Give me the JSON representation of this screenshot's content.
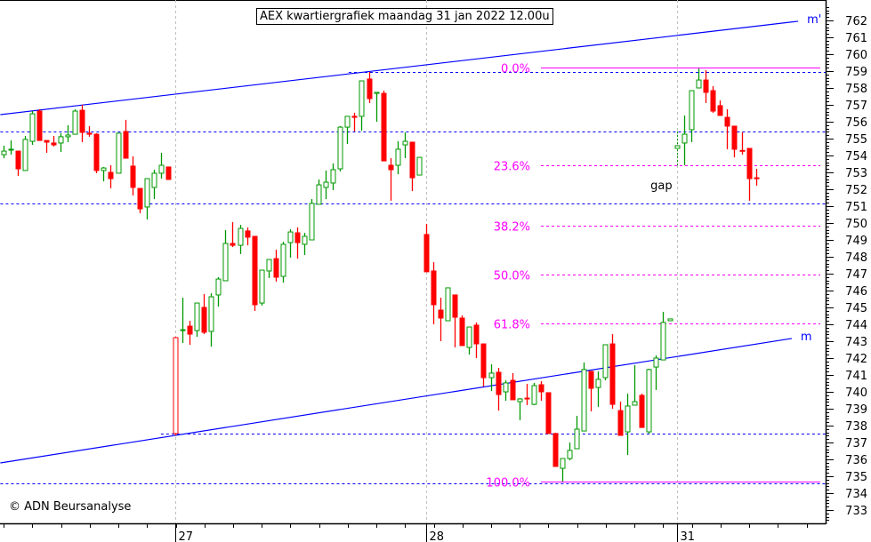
{
  "title": "AEX kwartiergrafiek maandag 31 jan 2022 12.00u",
  "copyright": "© ADN Beursanalyse",
  "colors": {
    "up": "#009900",
    "down": "#ff0000",
    "trend": "#0000ff",
    "fib": "#ff00ff",
    "grid": "#c0c0c0",
    "axis": "#000000"
  },
  "chart_data": {
    "type": "candlestick",
    "title": "AEX kwartiergrafiek maandag 31 jan 2022 12.00u",
    "ylabel": "",
    "ylim": [
      732.3,
      763.2
    ],
    "y_ticks": [
      733,
      734,
      735,
      736,
      737,
      738,
      739,
      740,
      741,
      742,
      743,
      744,
      745,
      746,
      747,
      748,
      749,
      750,
      751,
      752,
      753,
      754,
      755,
      756,
      757,
      758,
      759,
      760,
      761,
      762
    ],
    "bars_per_day": 35,
    "x_tick_every": 4,
    "x_range": [
      -24.4,
      90.7
    ],
    "day_labels": [
      {
        "t": 0,
        "label": "27"
      },
      {
        "t": 35,
        "label": "28"
      },
      {
        "t": 70,
        "label": "31"
      }
    ],
    "candle_fields": [
      "t",
      "open",
      "high",
      "low",
      "close"
    ],
    "candles": [
      [
        -24,
        754.05,
        754.58,
        753.84,
        754.26
      ],
      [
        -23,
        754.32,
        754.89,
        754.05,
        754.37
      ],
      [
        -22,
        754.26,
        754.26,
        752.79,
        753.21
      ],
      [
        -21,
        753.11,
        755.16,
        753.11,
        754.95
      ],
      [
        -20,
        754.84,
        756.63,
        754.63,
        756.47
      ],
      [
        -19,
        756.63,
        756.74,
        754.89,
        754.89
      ],
      [
        -18,
        754.89,
        754.89,
        754.16,
        754.79
      ],
      [
        -17,
        754.74,
        755.16,
        754.53,
        754.63
      ],
      [
        -16,
        754.74,
        755.32,
        754.21,
        755.11
      ],
      [
        -15,
        755.11,
        755.79,
        754.79,
        755.21
      ],
      [
        -14,
        755.26,
        756.74,
        755.26,
        756.63
      ],
      [
        -13,
        756.68,
        757.0,
        754.79,
        755.37
      ],
      [
        -12,
        755.32,
        755.74,
        755.11,
        755.26
      ],
      [
        -11,
        755.26,
        755.32,
        752.95,
        753.11
      ],
      [
        -10,
        753.11,
        753.32,
        752.47,
        753.26
      ],
      [
        -9,
        753.0,
        753.42,
        752.05,
        752.63
      ],
      [
        -8,
        752.95,
        755.32,
        752.95,
        755.32
      ],
      [
        -7,
        755.42,
        756.11,
        753.84,
        753.84
      ],
      [
        -6,
        753.37,
        753.95,
        751.63,
        752.11
      ],
      [
        -5,
        752.05,
        752.05,
        750.58,
        750.84
      ],
      [
        -4,
        750.95,
        752.63,
        750.21,
        752.63
      ],
      [
        -3,
        752.11,
        753.16,
        751.42,
        752.95
      ],
      [
        -2,
        752.95,
        754.16,
        752.63,
        753.42
      ],
      [
        -1,
        753.32,
        753.32,
        752.58,
        752.58
      ],
      [
        0,
        743.21,
        743.26,
        737.42,
        737.53
      ],
      [
        1,
        743.63,
        745.58,
        742.89,
        743.68
      ],
      [
        2,
        743.89,
        744.21,
        742.79,
        743.42
      ],
      [
        3,
        743.63,
        745.26,
        743.26,
        745.26
      ],
      [
        4,
        745.0,
        745.79,
        743.42,
        743.53
      ],
      [
        5,
        743.58,
        745.84,
        742.68,
        745.63
      ],
      [
        6,
        745.74,
        746.79,
        745.05,
        746.68
      ],
      [
        7,
        746.58,
        749.58,
        746.58,
        748.79
      ],
      [
        8,
        748.79,
        750.05,
        748.58,
        748.68
      ],
      [
        9,
        748.68,
        749.89,
        748.16,
        749.68
      ],
      [
        10,
        749.53,
        749.74,
        748.68,
        749.16
      ],
      [
        11,
        749.21,
        749.21,
        744.79,
        745.16
      ],
      [
        12,
        745.26,
        747.21,
        745.11,
        747.21
      ],
      [
        13,
        747.16,
        747.84,
        746.74,
        747.84
      ],
      [
        14,
        747.89,
        748.42,
        746.53,
        746.79
      ],
      [
        15,
        746.84,
        748.89,
        746.47,
        748.74
      ],
      [
        16,
        748.84,
        749.63,
        747.95,
        749.47
      ],
      [
        17,
        749.42,
        749.74,
        747.89,
        748.84
      ],
      [
        18,
        748.74,
        749.42,
        748.11,
        749.21
      ],
      [
        19,
        749.0,
        751.42,
        749.0,
        751.16
      ],
      [
        20,
        751.11,
        752.58,
        751.11,
        752.26
      ],
      [
        21,
        752.11,
        753.11,
        751.42,
        752.42
      ],
      [
        22,
        752.37,
        753.53,
        751.95,
        753.16
      ],
      [
        23,
        753.21,
        755.74,
        753.05,
        755.68
      ],
      [
        24,
        755.68,
        756.32,
        754.68,
        756.32
      ],
      [
        25,
        756.32,
        756.53,
        755.42,
        756.26
      ],
      [
        26,
        756.32,
        758.42,
        755.47,
        758.42
      ],
      [
        27,
        758.53,
        758.95,
        757.11,
        757.37
      ],
      [
        28,
        757.68,
        757.74,
        756.0,
        757.74
      ],
      [
        29,
        757.68,
        757.84,
        753.68,
        753.68
      ],
      [
        30,
        753.42,
        753.84,
        751.32,
        753.16
      ],
      [
        31,
        753.42,
        754.84,
        752.89,
        754.37
      ],
      [
        32,
        754.63,
        755.37,
        753.84,
        754.84
      ],
      [
        33,
        754.79,
        754.79,
        751.89,
        752.68
      ],
      [
        34,
        752.84,
        753.89,
        752.84,
        753.89
      ],
      [
        35,
        749.32,
        749.95,
        747.11,
        747.11
      ],
      [
        36,
        747.16,
        747.68,
        744.0,
        745.16
      ],
      [
        37,
        744.84,
        745.58,
        743.0,
        744.37
      ],
      [
        38,
        744.21,
        746.16,
        744.21,
        746.16
      ],
      [
        39,
        745.74,
        745.74,
        742.63,
        744.42
      ],
      [
        40,
        744.37,
        744.53,
        742.74,
        742.74
      ],
      [
        41,
        742.63,
        743.84,
        742.21,
        743.84
      ],
      [
        42,
        743.95,
        744.11,
        742.0,
        742.84
      ],
      [
        43,
        742.84,
        742.84,
        740.32,
        740.84
      ],
      [
        44,
        740.84,
        741.63,
        740.05,
        741.11
      ],
      [
        45,
        741.16,
        741.42,
        738.89,
        739.84
      ],
      [
        46,
        740.0,
        740.68,
        739.47,
        740.53
      ],
      [
        47,
        740.68,
        741.11,
        739.53,
        739.53
      ],
      [
        48,
        739.42,
        739.63,
        738.32,
        739.58
      ],
      [
        49,
        739.63,
        740.47,
        739.21,
        739.58
      ],
      [
        50,
        739.26,
        740.53,
        739.21,
        740.37
      ],
      [
        51,
        740.42,
        740.63,
        739.47,
        740.0
      ],
      [
        52,
        739.95,
        739.95,
        737.53,
        737.53
      ],
      [
        53,
        737.53,
        737.58,
        735.58,
        735.58
      ],
      [
        54,
        735.47,
        736.05,
        734.68,
        736.05
      ],
      [
        55,
        736.05,
        737.0,
        735.95,
        736.53
      ],
      [
        56,
        736.63,
        738.58,
        736.63,
        737.79
      ],
      [
        57,
        737.68,
        741.74,
        737.68,
        741.32
      ],
      [
        58,
        741.21,
        741.21,
        738.84,
        740.21
      ],
      [
        59,
        740.26,
        741.21,
        739.11,
        740.74
      ],
      [
        60,
        740.84,
        742.79,
        740.68,
        742.79
      ],
      [
        61,
        742.84,
        743.42,
        739.0,
        739.26
      ],
      [
        62,
        738.89,
        739.42,
        737.42,
        737.42
      ],
      [
        63,
        737.63,
        739.89,
        736.26,
        739.16
      ],
      [
        64,
        739.21,
        741.58,
        739.21,
        739.42
      ],
      [
        65,
        739.79,
        739.89,
        737.89,
        737.89
      ],
      [
        66,
        737.63,
        741.37,
        737.53,
        741.32
      ],
      [
        67,
        741.47,
        742.16,
        740.11,
        742.0
      ],
      [
        68,
        741.89,
        744.74,
        741.89,
        744.11
      ],
      [
        69,
        744.21,
        744.32,
        744.21,
        744.32
      ],
      [
        70,
        754.42,
        754.58,
        754.42,
        754.58
      ],
      [
        71,
        754.74,
        756.37,
        753.42,
        755.26
      ],
      [
        72,
        755.53,
        757.84,
        754.79,
        757.84
      ],
      [
        73,
        758.0,
        759.16,
        758.0,
        758.47
      ],
      [
        74,
        758.47,
        759.05,
        757.11,
        757.74
      ],
      [
        75,
        757.84,
        758.11,
        756.53,
        756.63
      ],
      [
        76,
        756.95,
        757.26,
        756.37,
        756.37
      ],
      [
        77,
        756.26,
        756.74,
        754.37,
        755.74
      ],
      [
        78,
        755.74,
        755.74,
        753.89,
        754.37
      ],
      [
        79,
        754.3,
        755.37,
        754.05,
        754.26
      ],
      [
        80,
        754.42,
        754.42,
        751.32,
        752.63
      ],
      [
        81,
        752.68,
        753.21,
        752.21,
        752.63
      ]
    ],
    "gap_bar_open_outline": 0,
    "trendlines": [
      {
        "name": "m'",
        "label": "m'",
        "start": {
          "t": -24.4,
          "price": 756.42
        },
        "end": {
          "t": 86.9,
          "price": 761.95
        }
      },
      {
        "name": "m",
        "label": "m",
        "start": {
          "t": -24.4,
          "price": 735.79
        },
        "end": {
          "t": 86.0,
          "price": 743.16
        }
      }
    ],
    "support_resistance": [
      {
        "price": 758.95,
        "from_t": 24.2
      },
      {
        "price": 755.42,
        "from_t": -24.4
      },
      {
        "price": 751.16,
        "from_t": -24.4
      },
      {
        "price": 737.53,
        "from_t": -2.0
      },
      {
        "price": 734.58,
        "from_t": -24.4
      }
    ],
    "fibonacci": {
      "from_t": 51.0,
      "levels": [
        {
          "label": "0.0%",
          "price": 759.2,
          "solid": true
        },
        {
          "label": "23.6%",
          "price": 753.42,
          "solid": false
        },
        {
          "label": "38.2%",
          "price": 749.84,
          "solid": false
        },
        {
          "label": "50.0%",
          "price": 746.95,
          "solid": false
        },
        {
          "label": "61.8%",
          "price": 744.05,
          "solid": false
        },
        {
          "label": "100.0%",
          "price": 734.68,
          "solid": true
        }
      ]
    },
    "annotations": [
      {
        "text": "gap",
        "t": 66.3,
        "price": 752.0
      }
    ],
    "gap_marker": {
      "t": 70,
      "from": 753.42,
      "to": 755.42
    }
  }
}
